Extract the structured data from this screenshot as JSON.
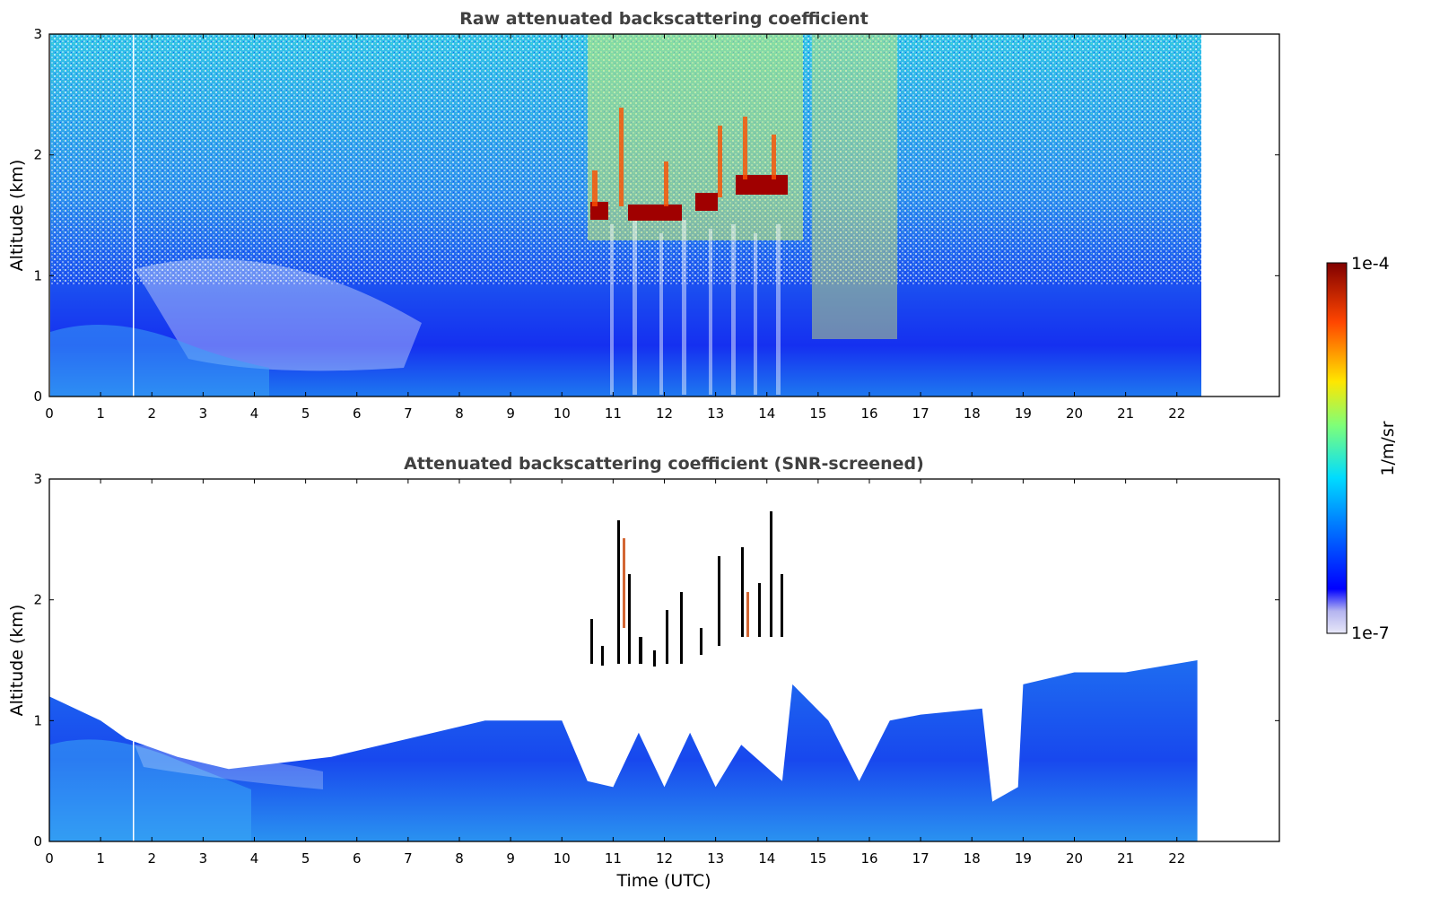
{
  "chart_data": [
    {
      "type": "heatmap",
      "title": "Raw attenuated backscattering coefficient",
      "xlabel": "",
      "ylabel": "Altitude (km)",
      "xlim": [
        0,
        24
      ],
      "ylim": [
        0,
        3
      ],
      "x_ticks": [
        "0",
        "1",
        "2",
        "3",
        "4",
        "5",
        "6",
        "7",
        "8",
        "9",
        "10",
        "11",
        "12",
        "13",
        "14",
        "15",
        "16",
        "17",
        "18",
        "19",
        "20",
        "21",
        "22"
      ],
      "y_ticks": [
        "0",
        "1",
        "2",
        "3"
      ],
      "data_x_range": [
        0,
        22.4
      ],
      "color_scale": "log",
      "features": [
        {
          "kind": "boundary-layer",
          "x_range": [
            0,
            22.4
          ],
          "top_km": [
            0.4,
            1.0
          ]
        },
        {
          "kind": "cloud-base",
          "x_range": [
            10.5,
            14.4
          ],
          "base_km": [
            1.5,
            1.7
          ]
        },
        {
          "kind": "instrument-gap",
          "x": 1.65
        }
      ]
    },
    {
      "type": "heatmap",
      "title": "Attenuated backscattering coefficient (SNR-screened)",
      "xlabel": "Time (UTC)",
      "ylabel": "Altitude (km)",
      "xlim": [
        0,
        24
      ],
      "ylim": [
        0,
        3
      ],
      "x_ticks": [
        "0",
        "1",
        "2",
        "3",
        "4",
        "5",
        "6",
        "7",
        "8",
        "9",
        "10",
        "11",
        "12",
        "13",
        "14",
        "15",
        "16",
        "17",
        "18",
        "19",
        "20",
        "21",
        "22"
      ],
      "y_ticks": [
        "0",
        "1",
        "2",
        "3"
      ],
      "data_x_range": [
        0,
        22.4
      ],
      "color_scale": "log",
      "features": [
        {
          "kind": "valid-signal-top",
          "x_range": [
            0,
            22.4
          ],
          "top_km": [
            0.3,
            1.5
          ]
        },
        {
          "kind": "cloud-base",
          "x_range": [
            10.5,
            14.4
          ],
          "base_km": [
            1.45,
            1.7
          ]
        },
        {
          "kind": "screened-gap",
          "x_range": [
            18.2,
            18.9
          ],
          "bottom_km": 0.33
        }
      ]
    }
  ],
  "colorbar": {
    "label": "1/m/sr",
    "max_label": "1e-4",
    "min_label": "1e-7",
    "colormap": "jet",
    "colors": [
      "#e8e8f8",
      "#b4b4f0",
      "#0000ff",
      "#0080ff",
      "#00dcff",
      "#7dff7a",
      "#ffe600",
      "#ff4600",
      "#800000"
    ]
  }
}
